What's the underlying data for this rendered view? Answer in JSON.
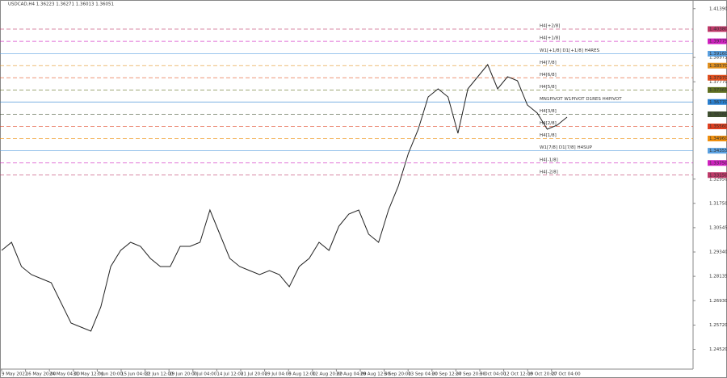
{
  "chart_data": {
    "type": "line",
    "title": "USDCAD,H4  1.36223 1.36271 1.36013 1.36051",
    "x_labels": [
      "9 May 2022",
      "16 May 20:00",
      "24 May 04:00",
      "31 May 12:00",
      "7 Jun 20:00",
      "15 Jun 04:00",
      "22 Jun 12:00",
      "29 Jun 20:00",
      "7 Jul 04:00",
      "14 Jul 12:00",
      "21 Jul 20:00",
      "29 Jul 04:00",
      "5 Aug 12:00",
      "12 Aug 20:00",
      "22 Aug 04:00",
      "29 Aug 12:00",
      "5 Sep 20:00",
      "13 Sep 04:00",
      "20 Sep 12:00",
      "27 Sep 20:00",
      "5 Oct 04:00",
      "12 Oct 12:00",
      "19 Oct 20:00",
      "27 Oct 04:00"
    ],
    "series": [
      {
        "name": "USDCAD,H4",
        "color": "#222222",
        "values": [
          1.2942,
          1.2982,
          1.2862,
          1.2822,
          1.2802,
          1.2782,
          1.2682,
          1.2582,
          1.2562,
          1.2542,
          1.2662,
          1.2862,
          1.2942,
          1.2982,
          1.2962,
          1.2902,
          1.2862,
          1.2862,
          1.2962,
          1.2962,
          1.2982,
          1.3142,
          1.3022,
          1.2902,
          1.2862,
          1.2842,
          1.2822,
          1.2842,
          1.2822,
          1.2762,
          1.2862,
          1.2902,
          1.2982,
          1.2942,
          1.3062,
          1.3122,
          1.3142,
          1.3022,
          1.2982,
          1.3142,
          1.3262,
          1.3422,
          1.3542,
          1.3702,
          1.3742,
          1.3702,
          1.3522,
          1.3742,
          1.3802,
          1.3862,
          1.3742,
          1.3802,
          1.3782,
          1.3662,
          1.3622,
          1.3542,
          1.3562,
          1.3602
        ]
      }
    ],
    "ylim": [
      1.2358,
      1.4166
    ],
    "yticks": [
      {
        "value": 1.4139,
        "label": "1.41390"
      },
      {
        "value": 1.38975,
        "label": "1.38975"
      },
      {
        "value": 1.3777,
        "label": "1.37770"
      },
      {
        "value": 1.3295,
        "label": "1.32950"
      },
      {
        "value": 1.3175,
        "label": "1.31750"
      },
      {
        "value": 1.30545,
        "label": "1.30545"
      },
      {
        "value": 1.2934,
        "label": "1.29340"
      },
      {
        "value": 1.28135,
        "label": "1.28135"
      },
      {
        "value": 1.2693,
        "label": "1.26930"
      },
      {
        "value": 1.2572,
        "label": "1.25720"
      },
      {
        "value": 1.2452,
        "label": "1.24520"
      }
    ],
    "levels": [
      {
        "name": "H4[+2/8]",
        "value": 1.4038,
        "value_label": "1.40380",
        "color": "#c03a6a",
        "style": "dashed"
      },
      {
        "name": "H4[+1/8]",
        "value": 1.39775,
        "value_label": "1.39775",
        "color": "#d020c0",
        "style": "dashed"
      },
      {
        "name": "W1[+1/8] D1[+1/8] H4RES",
        "value": 1.3916,
        "value_label": "1.39160",
        "color": "#5aa0e0",
        "style": "solid"
      },
      {
        "name": "H4[7/8]",
        "value": 1.3857,
        "value_label": "1.38570",
        "color": "#e09020",
        "style": "dashed"
      },
      {
        "name": "H4[6/8]",
        "value": 1.3797,
        "value_label": "1.37970",
        "color": "#e05020",
        "style": "dashed"
      },
      {
        "name": "H4[5/8]",
        "value": 1.37365,
        "value_label": "1.37365",
        "color": "#607020",
        "style": "dashed"
      },
      {
        "name": "MN1PIVOT W1PIVOT D1RES H4PIVOT",
        "value": 1.3677,
        "value_label": "1.36770",
        "color": "#2a80d0",
        "style": "solid"
      },
      {
        "name": "H4[3/8]",
        "value": 1.3616,
        "value_label": "1.36160",
        "color": "#405030",
        "style": "dashed"
      },
      {
        "name": "H4[2/8]",
        "value": 1.3556,
        "value_label": "1.35560",
        "color": "#e04020",
        "style": "dashed"
      },
      {
        "name": "H4[1/8]",
        "value": 1.3496,
        "value_label": "1.34960",
        "color": "#f09010",
        "style": "dashed"
      },
      {
        "name": "W1[7/8] D1[7/8] H4SUP",
        "value": 1.34355,
        "value_label": "1.34355",
        "color": "#5aa0e0",
        "style": "solid"
      },
      {
        "name": "H4[-1/8]",
        "value": 1.3375,
        "value_label": "1.33750",
        "color": "#d020c0",
        "style": "dashed"
      },
      {
        "name": "H4[-2/8]",
        "value": 1.3315,
        "value_label": "1.33150",
        "color": "#c03a6a",
        "style": "dashed"
      }
    ]
  }
}
